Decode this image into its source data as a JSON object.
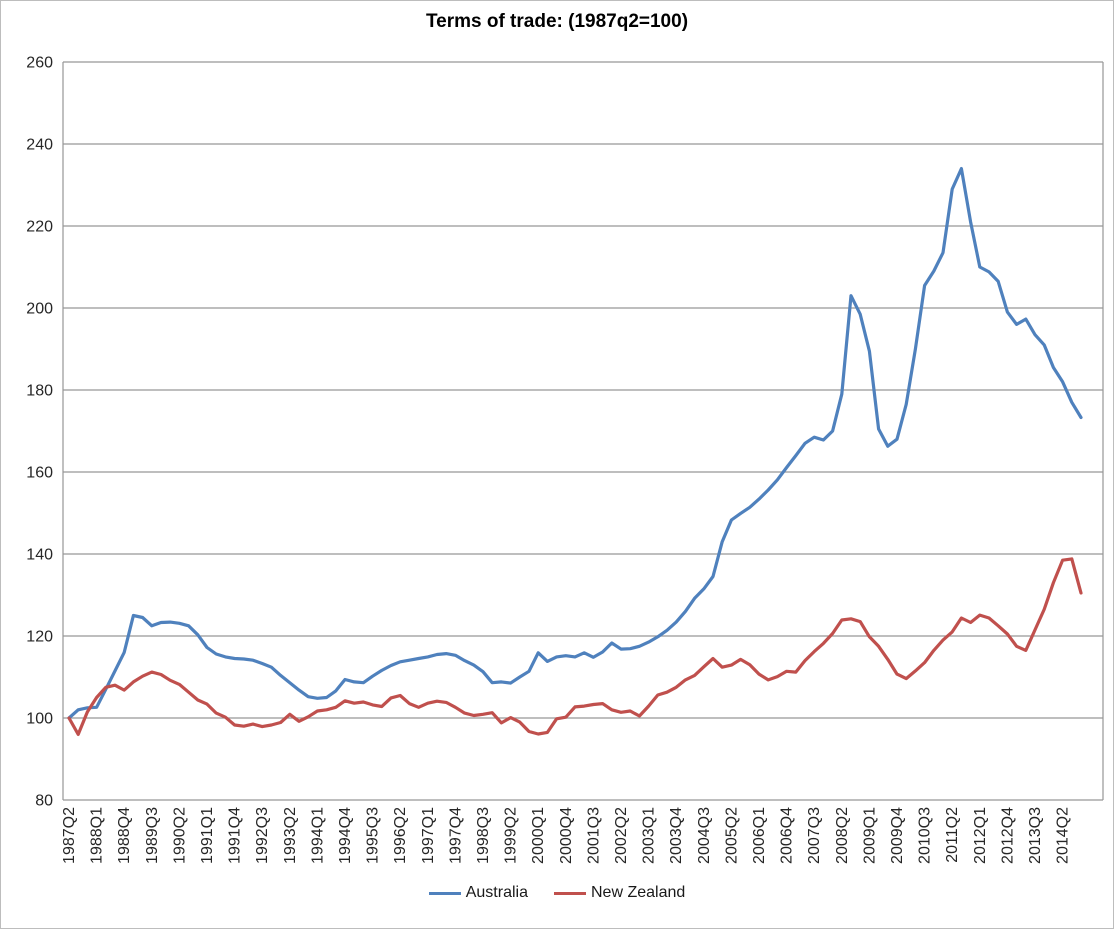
{
  "title": "Terms of trade: (1987q2=100)",
  "legend": {
    "items": [
      {
        "label": "Australia",
        "color": "#4F81BD"
      },
      {
        "label": "New Zealand",
        "color": "#C0504D"
      }
    ]
  },
  "chart_data": {
    "type": "line",
    "title": "Terms of trade: (1987q2=100)",
    "xlabel": "",
    "ylabel": "",
    "x_unit": "quarter",
    "x_start": "1987Q2",
    "x_end": "2014Q4",
    "n_points": 111,
    "x_tick_every": 3,
    "x_tick_labels": [
      "1987Q2",
      "1988Q1",
      "1988Q4",
      "1989Q3",
      "1990Q2",
      "1991Q1",
      "1991Q4",
      "1992Q3",
      "1993Q2",
      "1994Q1",
      "1994Q4",
      "1995Q3",
      "1996Q2",
      "1997Q1",
      "1997Q4",
      "1998Q3",
      "1999Q2",
      "2000Q1",
      "2000Q4",
      "2001Q3",
      "2002Q2",
      "2003Q1",
      "2003Q4",
      "2004Q3",
      "2005Q2",
      "2006Q1",
      "2006Q4",
      "2007Q3",
      "2008Q2",
      "2009Q1",
      "2009Q4",
      "2010Q3",
      "2011Q2",
      "2012Q1",
      "2012Q4",
      "2013Q3",
      "2014Q2"
    ],
    "ylim": [
      80,
      260
    ],
    "y_ticks": [
      80,
      100,
      120,
      140,
      160,
      180,
      200,
      220,
      240,
      260
    ],
    "grid": "horizontal",
    "gridline_color": "#969696",
    "legend_position": "bottom",
    "series": [
      {
        "name": "Australia",
        "color": "#4F81BD",
        "values": [
          100,
          102,
          102.5,
          102.6,
          107,
          111.5,
          116,
          125,
          124.5,
          122.5,
          123.3,
          123.4,
          123.1,
          122.5,
          120.3,
          117.2,
          115.6,
          114.9,
          114.5,
          114.4,
          114.1,
          113.3,
          112.4,
          110.4,
          108.6,
          106.8,
          105.2,
          104.8,
          105,
          106.6,
          109.4,
          108.8,
          108.6,
          110.2,
          111.6,
          112.8,
          113.7,
          114.1,
          114.5,
          114.9,
          115.5,
          115.7,
          115.3,
          114,
          112.9,
          111.3,
          108.6,
          108.8,
          108.5,
          110,
          111.4,
          115.9,
          113.8,
          114.9,
          115.2,
          114.9,
          115.9,
          114.8,
          116.1,
          118.3,
          116.8,
          116.9,
          117.5,
          118.5,
          119.8,
          121.4,
          123.4,
          126,
          129.2,
          131.5,
          134.5,
          143,
          148.3,
          149.9,
          151.4,
          153.4,
          155.6,
          158.1,
          161.1,
          164,
          167,
          168.5,
          167.8,
          170,
          179,
          203,
          198.5,
          189.5,
          170.5,
          166.3,
          168,
          176.5,
          190,
          205.5,
          209,
          213.5,
          229,
          234,
          221,
          210,
          208.8,
          206.5,
          199,
          196,
          197.3,
          193.5,
          191,
          185.5,
          182,
          177,
          173.3
        ]
      },
      {
        "name": "New Zealand",
        "color": "#C0504D",
        "values": [
          100,
          96,
          101.5,
          105,
          107.5,
          108,
          106.8,
          108.8,
          110.2,
          111.2,
          110.6,
          109.2,
          108.2,
          106.3,
          104.4,
          103.4,
          101.2,
          100.2,
          98.3,
          98,
          98.5,
          97.9,
          98.3,
          98.9,
          100.9,
          99.2,
          100.3,
          101.7,
          102,
          102.6,
          104.2,
          103.6,
          103.9,
          103.2,
          102.8,
          104.9,
          105.5,
          103.5,
          102.6,
          103.6,
          104.1,
          103.8,
          102.6,
          101.2,
          100.6,
          100.9,
          101.3,
          98.8,
          100.1,
          99,
          96.7,
          96.1,
          96.5,
          99.8,
          100.2,
          102.7,
          102.9,
          103.3,
          103.5,
          102,
          101.4,
          101.7,
          100.5,
          102.9,
          105.6,
          106.3,
          107.5,
          109.3,
          110.4,
          112.5,
          114.5,
          112.4,
          112.9,
          114.3,
          113,
          110.7,
          109.3,
          110.1,
          111.4,
          111.2,
          114,
          116.2,
          118.2,
          120.6,
          123.9,
          124.2,
          123.5,
          119.8,
          117.5,
          114.3,
          110.7,
          109.6,
          111.5,
          113.5,
          116.5,
          119,
          121,
          124.4,
          123.3,
          125.1,
          124.4,
          122.5,
          120.5,
          117.5,
          116.5,
          121.5,
          126.5,
          133,
          138.5,
          138.8,
          130.5
        ]
      }
    ]
  }
}
